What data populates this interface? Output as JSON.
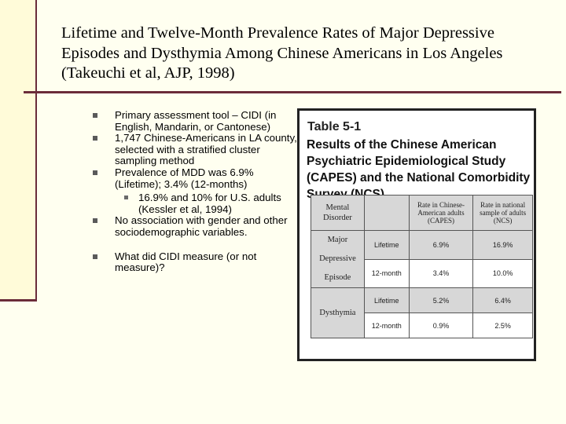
{
  "title": "Lifetime and Twelve-Month Prevalence Rates of Major Depressive Episodes and Dysthymia Among Chinese Americans in Los Angeles (Takeuchi et al, AJP, 1998)",
  "bullets": [
    "Primary assessment tool – CIDI (in English, Mandarin, or Cantonese)",
    "1,747 Chinese-Americans in LA county, selected with a stratified cluster sampling method",
    "Prevalence of MDD was 6.9% (Lifetime); 3.4% (12-months)"
  ],
  "sub_bullet": "16.9% and 10% for U.S. adults (Kessler et al, 1994)",
  "bullets_after": [
    "No association with gender and other sociodemographic variables.",
    "What did CIDI measure (or not measure)?"
  ],
  "table": {
    "number": "Table 5-1",
    "title": "Results of the Chinese American Psychiatric Epidemiological Study (CAPES) and the National Comorbidity Survey (NCS)",
    "headers": {
      "disorder": "Mental Disorder",
      "capes": "Rate in Chinese-American adults (CAPES)",
      "ncs": "Rate in national sample of adults (NCS)"
    },
    "groups": [
      {
        "name": "Major Depressive Episode",
        "rows": [
          {
            "period": "Lifetime",
            "capes": "6.9%",
            "ncs": "16.9%"
          },
          {
            "period": "12-month",
            "capes": "3.4%",
            "ncs": "10.0%"
          }
        ]
      },
      {
        "name": "Dysthymia",
        "rows": [
          {
            "period": "Lifetime",
            "capes": "5.2%",
            "ncs": "6.4%"
          },
          {
            "period": "12-month",
            "capes": "0.9%",
            "ncs": "2.5%"
          }
        ]
      }
    ]
  }
}
